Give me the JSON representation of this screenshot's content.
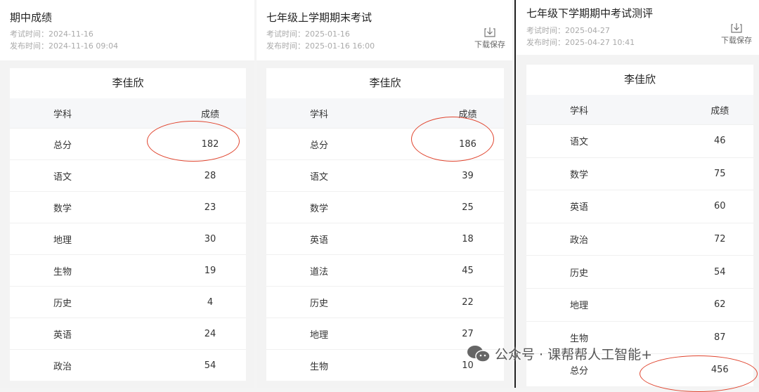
{
  "panels": [
    {
      "title": "期中成绩",
      "exam_time": "考试时间：2024-11-16",
      "publish_time": "发布时间：2024-11-16 09:04",
      "download": null,
      "student": "李佳欣",
      "col_subject": "学科",
      "col_score": "成绩",
      "rows": [
        [
          "总分",
          "182"
        ],
        [
          "语文",
          "28"
        ],
        [
          "数学",
          "23"
        ],
        [
          "地理",
          "30"
        ],
        [
          "生物",
          "19"
        ],
        [
          "历史",
          "4"
        ],
        [
          "英语",
          "24"
        ],
        [
          "政治",
          "54"
        ]
      ]
    },
    {
      "title": "七年级上学期期末考试",
      "exam_time": "考试时间：2025-01-16",
      "publish_time": "发布时间：2025-01-16 16:00",
      "download": "下载保存",
      "student": "李佳欣",
      "col_subject": "学科",
      "col_score": "成绩",
      "rows": [
        [
          "总分",
          "186"
        ],
        [
          "语文",
          "39"
        ],
        [
          "数学",
          "25"
        ],
        [
          "英语",
          "18"
        ],
        [
          "道法",
          "45"
        ],
        [
          "历史",
          "22"
        ],
        [
          "地理",
          "27"
        ],
        [
          "生物",
          "10"
        ]
      ]
    },
    {
      "title": "七年级下学期期中考试测评",
      "exam_time": "考试时间：2025-04-27",
      "publish_time": "发布时间：2025-04-27 10:41",
      "download": "下载保存",
      "student": "李佳欣",
      "col_subject": "学科",
      "col_score": "成绩",
      "rows": [
        [
          "语文",
          "46"
        ],
        [
          "数学",
          "75"
        ],
        [
          "英语",
          "60"
        ],
        [
          "政治",
          "72"
        ],
        [
          "历史",
          "54"
        ],
        [
          "地理",
          "62"
        ],
        [
          "生物",
          "87"
        ],
        [
          "总分",
          "456"
        ]
      ]
    }
  ],
  "annotation_color": "#e0452f",
  "watermark": "公众号 · 课帮帮人工智能+"
}
